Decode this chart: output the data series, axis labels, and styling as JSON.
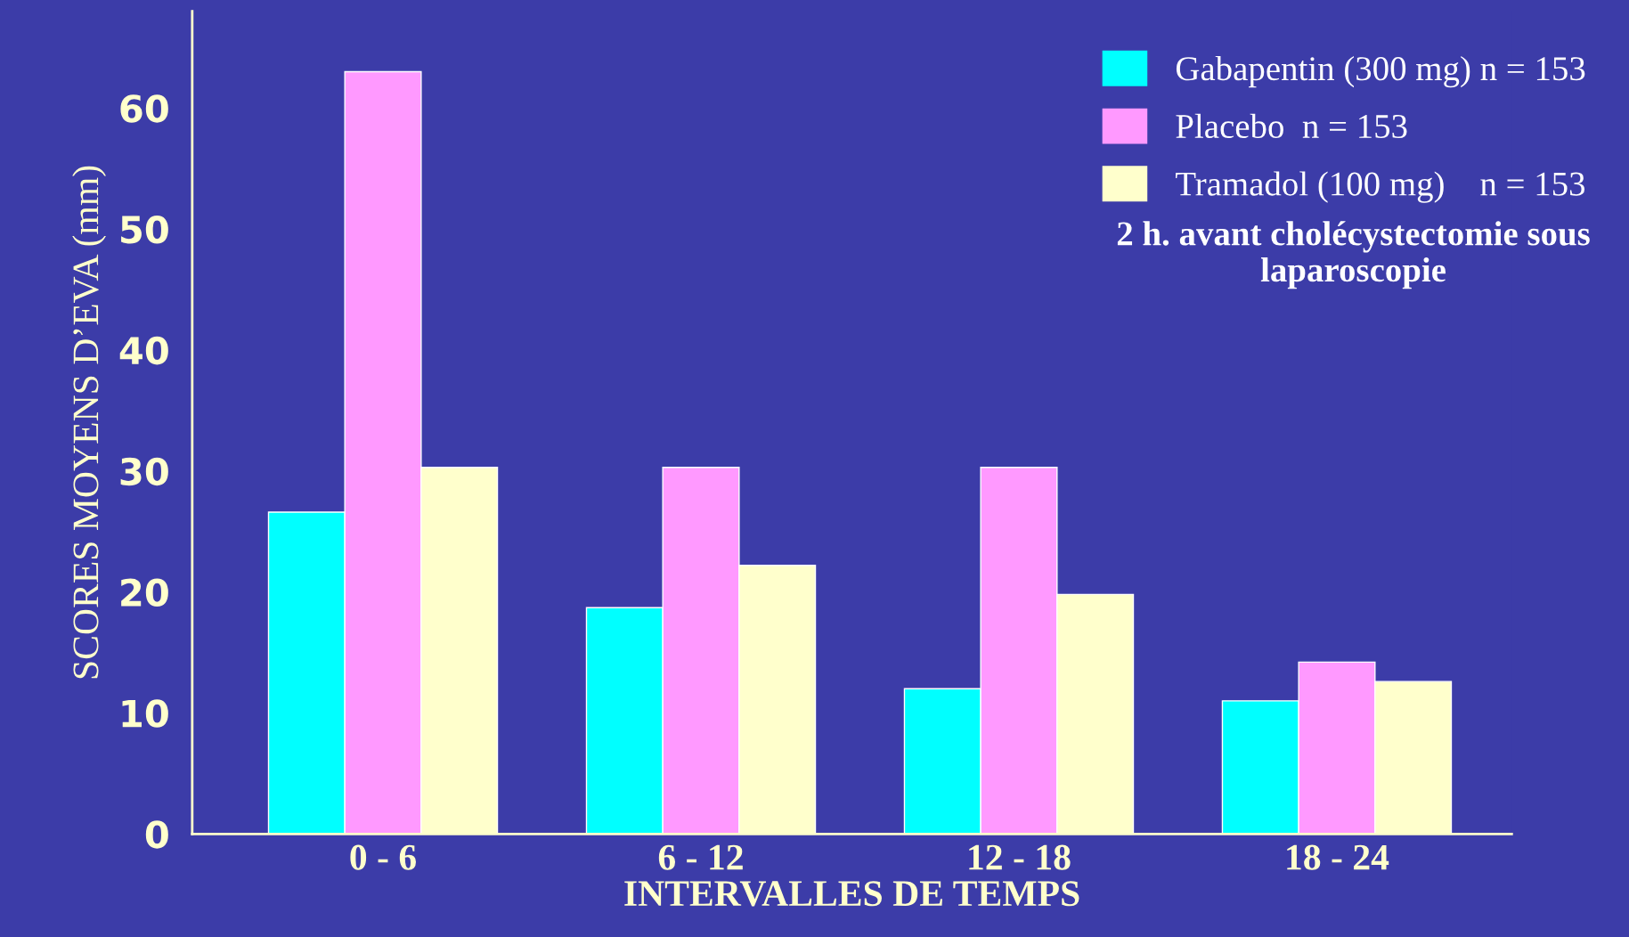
{
  "chart_data": {
    "type": "bar",
    "xlabel": "INTERVALLES DE TEMPS",
    "ylabel": "SCORES MOYENS D’EVA (mm)",
    "categories": [
      "0 - 6",
      "6 - 12",
      "12 - 18",
      "18 - 24"
    ],
    "series": [
      {
        "name": "Gabapentin (300 mg) n = 153",
        "color": "#00ffff",
        "values": [
          26.6,
          18.7,
          12.0,
          11.0
        ]
      },
      {
        "name": "Placebo  n = 153",
        "color": "#ff99ff",
        "values": [
          63.0,
          30.3,
          30.3,
          14.2
        ]
      },
      {
        "name": "Tramadol (100 mg)    n = 153",
        "color": "#ffffcc",
        "values": [
          30.3,
          22.2,
          19.8,
          12.6
        ]
      }
    ],
    "ylim": [
      0,
      68
    ],
    "yticks": [
      0,
      10,
      20,
      30,
      40,
      50,
      60
    ],
    "grid": false,
    "legend": "top right",
    "annotations": [
      "2 h. avant cholécystectomie sous\nlaparoscopie"
    ]
  }
}
